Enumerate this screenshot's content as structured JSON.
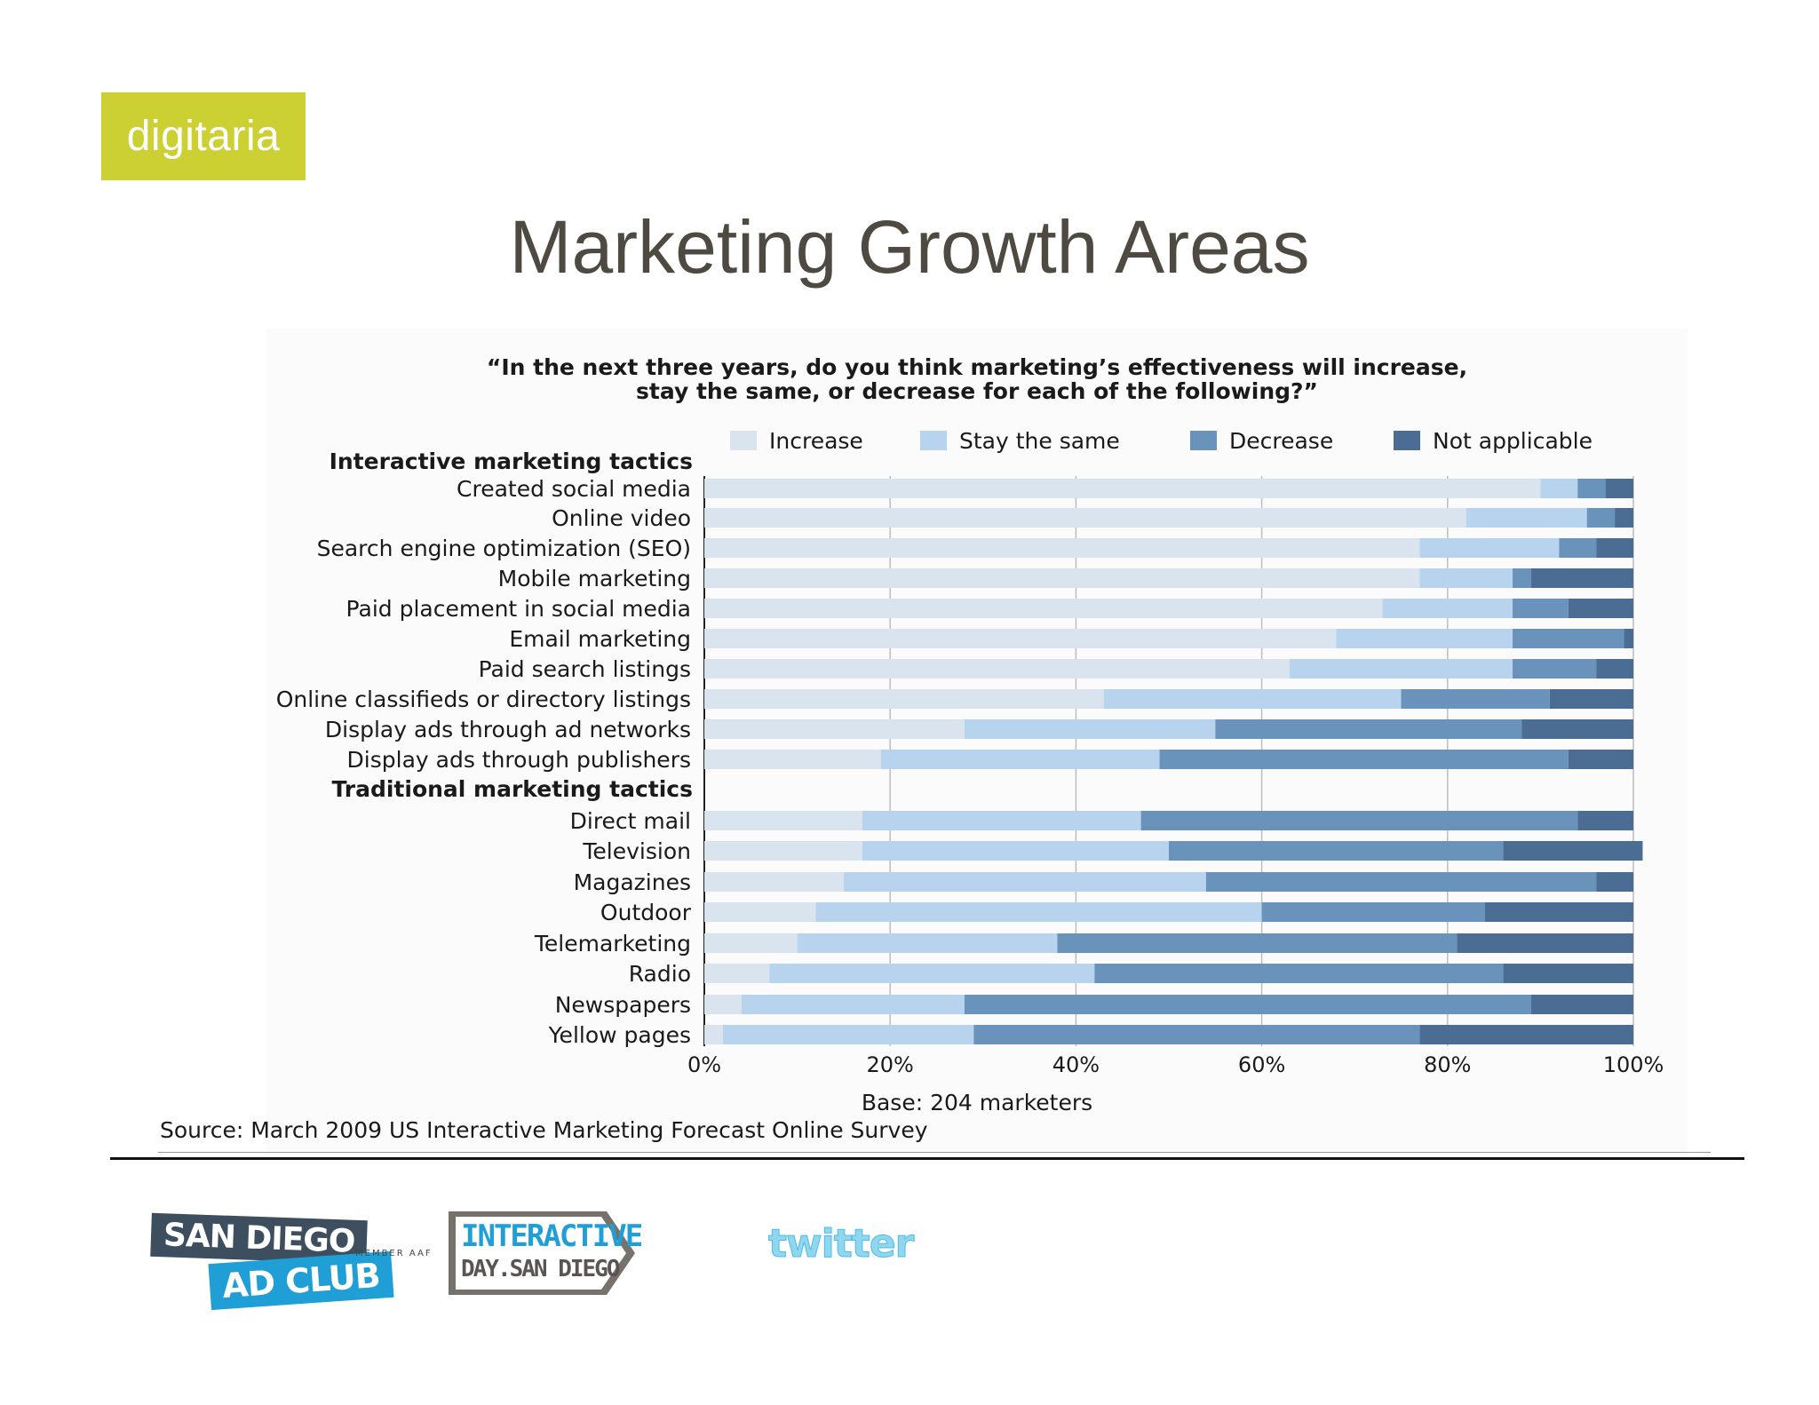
{
  "slide": {
    "logo_text": "digitaria",
    "title": "Marketing Growth Areas"
  },
  "chart_data": {
    "type": "bar",
    "orientation": "horizontal",
    "stacked": true,
    "title": "“In the next three years, do you think marketing’s effectiveness will increase,",
    "title_line2": "stay the same, or decrease for each of the following?”",
    "groups": [
      {
        "label": "Interactive marketing tactics",
        "start_index": 0
      },
      {
        "label": "Traditional marketing tactics",
        "start_index": 10
      }
    ],
    "categories": [
      "Created social media",
      "Online video",
      "Search engine optimization (SEO)",
      "Mobile marketing",
      "Paid placement in social media",
      "Email marketing",
      "Paid search listings",
      "Online classifieds or directory listings",
      "Display ads through ad networks",
      "Display ads through publishers",
      "Direct mail",
      "Television",
      "Magazines",
      "Outdoor",
      "Telemarketing",
      "Radio",
      "Newspapers",
      "Yellow pages"
    ],
    "series": [
      {
        "name": "Increase",
        "color": "#d9e4ef",
        "values": [
          90,
          82,
          77,
          77,
          73,
          68,
          63,
          43,
          28,
          19,
          17,
          17,
          15,
          12,
          10,
          7,
          4,
          2
        ]
      },
      {
        "name": "Stay the same",
        "color": "#b8d3ee",
        "values": [
          4,
          13,
          15,
          10,
          14,
          19,
          24,
          32,
          27,
          30,
          30,
          33,
          39,
          48,
          28,
          35,
          24,
          27
        ]
      },
      {
        "name": "Decrease",
        "color": "#6a93bc",
        "values": [
          3,
          3,
          4,
          2,
          6,
          12,
          9,
          16,
          33,
          44,
          47,
          36,
          42,
          24,
          43,
          44,
          61,
          48
        ]
      },
      {
        "name": "Not applicable",
        "color": "#4c6d93",
        "values": [
          3,
          2,
          4,
          11,
          7,
          1,
          4,
          9,
          12,
          7,
          6,
          15,
          4,
          16,
          19,
          14,
          11,
          23
        ]
      }
    ],
    "x_ticks": [
      "0%",
      "20%",
      "40%",
      "60%",
      "80%",
      "100%"
    ],
    "xlim": [
      0,
      100
    ],
    "grid": true,
    "legend_position": "top",
    "base_note": "Base: 204 marketers",
    "source": "Source: March 2009 US Interactive Marketing Forecast Online Survey"
  },
  "footer": {
    "sd_top": "SAN DIEGO",
    "sd_bottom": "AD CLUB",
    "member": "MEMBER AAF",
    "interactive_line1": "INTERACTIVE",
    "interactive_line2": "DAY.SAN DIEGO",
    "twitter": "twitter"
  }
}
